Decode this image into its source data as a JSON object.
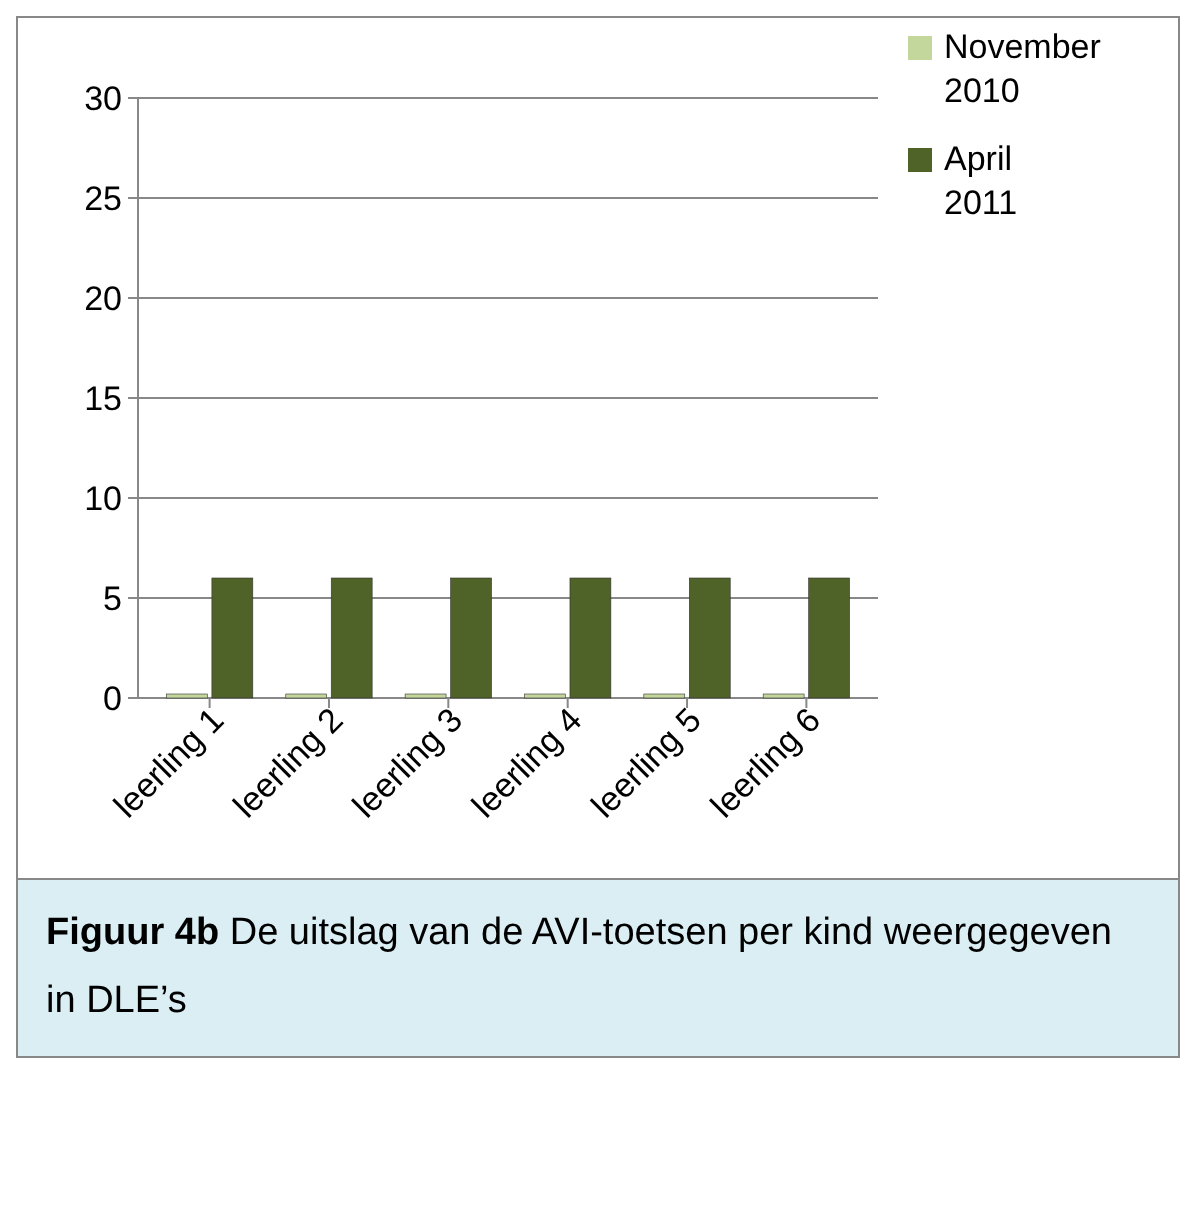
{
  "chart_data": {
    "type": "bar",
    "categories": [
      "leerling 1",
      "leerling 2",
      "leerling 3",
      "leerling 4",
      "leerling 5",
      "leerling 6"
    ],
    "series": [
      {
        "name": "November 2010",
        "color": "#c3d69b",
        "values": [
          0,
          0,
          0,
          0,
          0,
          0
        ]
      },
      {
        "name": "April 2011",
        "color": "#4f6228",
        "values": [
          6,
          6,
          6,
          6,
          6,
          6
        ]
      }
    ],
    "ylim": [
      0,
      30
    ],
    "yticks": [
      0,
      5,
      10,
      15,
      20,
      25,
      30
    ],
    "grid": "y",
    "legend": "top right",
    "annotations": [
      "Figuur 4b",
      "De uitslag van de AVI-toetsen per kind weergegeven in DLE’s"
    ]
  }
}
